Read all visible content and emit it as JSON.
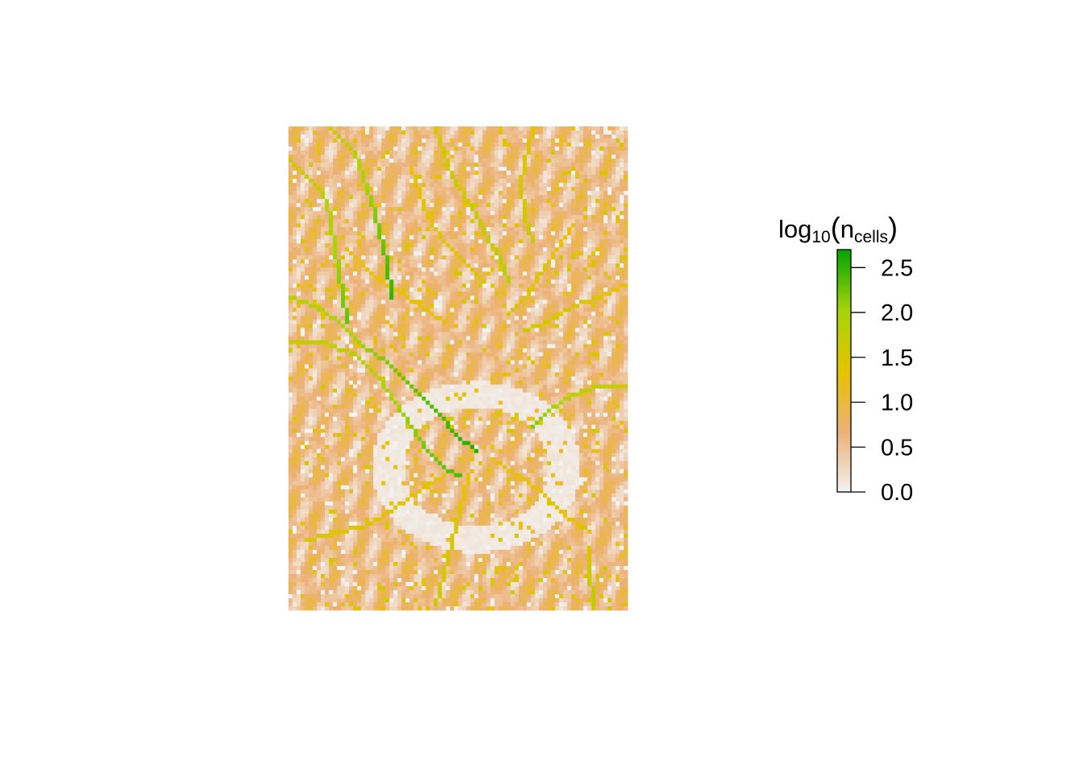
{
  "chart_data": {
    "type": "heatmap",
    "description_kind": "raster flow-accumulation map",
    "grid": {
      "cols": 84,
      "rows": 120
    },
    "value_range": [
      0,
      2.7
    ],
    "legend": {
      "title_main": "log",
      "title_sub": "10",
      "title_paren_open": "(",
      "title_n": "n",
      "title_n_sub": "cells",
      "title_paren_close": ")",
      "ticks": [
        {
          "value": 0.0,
          "label": "0.0"
        },
        {
          "value": 0.5,
          "label": "0.5"
        },
        {
          "value": 1.0,
          "label": "1.0"
        },
        {
          "value": 1.5,
          "label": "1.5"
        },
        {
          "value": 2.0,
          "label": "2.0"
        },
        {
          "value": 2.5,
          "label": "2.5"
        }
      ],
      "placement": "right"
    },
    "colors": {
      "stops": [
        "#f2f2f2",
        "#ecb176",
        "#e6c200",
        "#a6d40a",
        "#00a600"
      ]
    },
    "channels": [
      {
        "points": [
          [
            10,
            0
          ],
          [
            16,
            6
          ],
          [
            18,
            12
          ],
          [
            20,
            18
          ],
          [
            22,
            26
          ],
          [
            24,
            34
          ],
          [
            25,
            42
          ]
        ],
        "peak": 2.5
      },
      {
        "points": [
          [
            0,
            8
          ],
          [
            6,
            14
          ],
          [
            9,
            18
          ],
          [
            10,
            24
          ],
          [
            11,
            30
          ],
          [
            12,
            36
          ],
          [
            13,
            42
          ],
          [
            14,
            48
          ]
        ],
        "peak": 2.3
      },
      {
        "points": [
          [
            0,
            42
          ],
          [
            6,
            44
          ],
          [
            12,
            48
          ],
          [
            18,
            54
          ],
          [
            24,
            58
          ],
          [
            30,
            64
          ],
          [
            36,
            70
          ],
          [
            41,
            76
          ],
          [
            46,
            80
          ]
        ],
        "peak": 2.6
      },
      {
        "points": [
          [
            0,
            53
          ],
          [
            8,
            53
          ],
          [
            16,
            56
          ],
          [
            22,
            62
          ],
          [
            26,
            68
          ],
          [
            30,
            74
          ],
          [
            34,
            80
          ],
          [
            38,
            84
          ],
          [
            42,
            86
          ]
        ],
        "peak": 2.4
      },
      {
        "points": [
          [
            36,
            0
          ],
          [
            38,
            6
          ],
          [
            40,
            12
          ],
          [
            44,
            18
          ],
          [
            48,
            26
          ],
          [
            52,
            32
          ],
          [
            54,
            38
          ]
        ],
        "peak": 1.9
      },
      {
        "points": [
          [
            60,
            0
          ],
          [
            58,
            8
          ],
          [
            57,
            14
          ],
          [
            58,
            22
          ],
          [
            60,
            28
          ]
        ],
        "peak": 1.7
      },
      {
        "points": [
          [
            84,
            64
          ],
          [
            76,
            64
          ],
          [
            70,
            66
          ],
          [
            64,
            70
          ],
          [
            60,
            74
          ]
        ],
        "peak": 2.2
      },
      {
        "points": [
          [
            84,
            38
          ],
          [
            76,
            42
          ],
          [
            70,
            44
          ],
          [
            64,
            48
          ],
          [
            58,
            50
          ]
        ],
        "peak": 1.6
      },
      {
        "points": [
          [
            74,
            104
          ],
          [
            74,
            110
          ],
          [
            75,
            118
          ]
        ],
        "peak": 1.8
      },
      {
        "points": [
          [
            30,
            10
          ],
          [
            32,
            16
          ],
          [
            34,
            22
          ],
          [
            38,
            28
          ],
          [
            44,
            34
          ],
          [
            48,
            38
          ]
        ],
        "peak": 1.5
      },
      {
        "points": [
          [
            50,
            82
          ],
          [
            56,
            86
          ],
          [
            62,
            90
          ],
          [
            68,
            96
          ],
          [
            74,
            100
          ]
        ],
        "peak": 1.4
      },
      {
        "points": [
          [
            38,
            86
          ],
          [
            32,
            90
          ],
          [
            26,
            94
          ],
          [
            20,
            98
          ],
          [
            12,
            100
          ],
          [
            4,
            102
          ]
        ],
        "peak": 1.5
      },
      {
        "points": [
          [
            44,
            86
          ],
          [
            42,
            94
          ],
          [
            40,
            102
          ],
          [
            38,
            110
          ],
          [
            36,
            118
          ]
        ],
        "peak": 1.6
      },
      {
        "points": [
          [
            14,
            30
          ],
          [
            20,
            36
          ],
          [
            26,
            40
          ],
          [
            32,
            44
          ],
          [
            38,
            48
          ]
        ],
        "peak": 1.4
      },
      {
        "points": [
          [
            70,
            24
          ],
          [
            66,
            30
          ],
          [
            62,
            36
          ],
          [
            58,
            42
          ],
          [
            54,
            46
          ]
        ],
        "peak": 1.5
      }
    ]
  }
}
